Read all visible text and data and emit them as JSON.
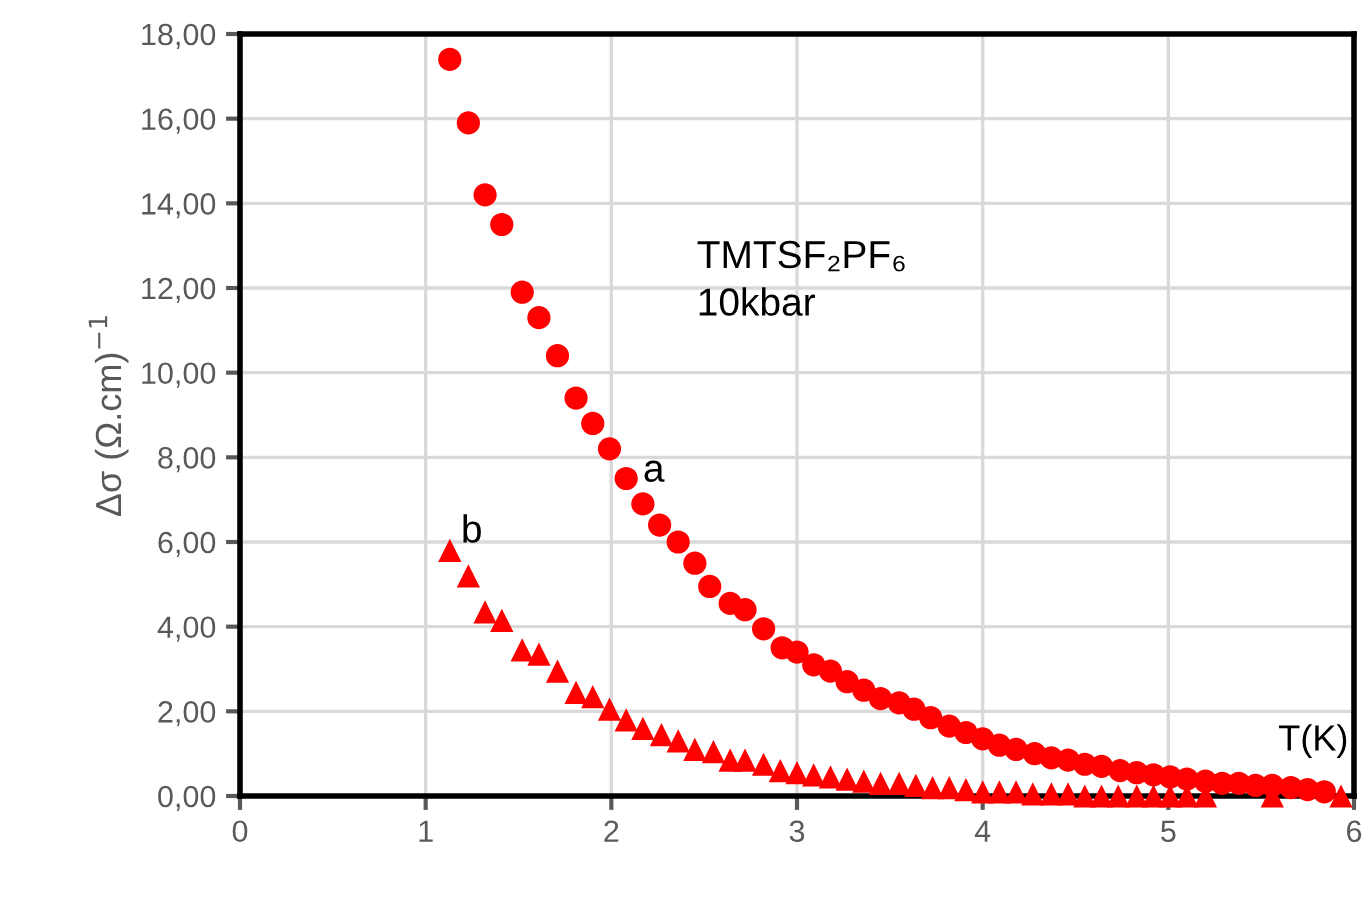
{
  "chart_data": {
    "type": "scatter",
    "xlabel": "T(K)",
    "ylabel": "Δσ (Ω.cm)$^{−1}$",
    "xlim": [
      0,
      6
    ],
    "xticks": [
      0,
      1,
      2,
      3,
      4,
      5,
      6
    ],
    "ylim": [
      0,
      18
    ],
    "yticks": [
      {
        "value": 0,
        "label": "0,00"
      },
      {
        "value": 2,
        "label": "2,00"
      },
      {
        "value": 4,
        "label": "4,00"
      },
      {
        "value": 6,
        "label": "6,00"
      },
      {
        "value": 8,
        "label": "8,00"
      },
      {
        "value": 10,
        "label": "10,00"
      },
      {
        "value": 12,
        "label": "12,00"
      },
      {
        "value": 14,
        "label": "14,00"
      },
      {
        "value": 16,
        "label": "16,00"
      },
      {
        "value": 18,
        "label": "18,00"
      }
    ],
    "grid": true,
    "legend": false,
    "series": [
      {
        "color": "#ff0000",
        "marker": "circle",
        "x": [
          1.13,
          1.23,
          1.32,
          1.41,
          1.52,
          1.61,
          1.71,
          1.81,
          1.9,
          1.99,
          2.08,
          2.17,
          2.26,
          2.36,
          2.45,
          2.53,
          2.64,
          2.72,
          2.82,
          2.92,
          3.0,
          3.09,
          3.18,
          3.27,
          3.36,
          3.45,
          3.55,
          3.63,
          3.72,
          3.82,
          3.91,
          4.0,
          4.09,
          4.18,
          4.28,
          4.37,
          4.46,
          4.55,
          4.64,
          4.74,
          4.83,
          4.92,
          5.01,
          5.1,
          5.2,
          5.29,
          5.38,
          5.47,
          5.56,
          5.66,
          5.75,
          5.84
        ],
        "values": [
          17.4,
          15.9,
          14.2,
          13.5,
          11.9,
          11.3,
          10.4,
          9.4,
          8.8,
          8.2,
          7.5,
          6.9,
          6.4,
          6.0,
          5.5,
          4.95,
          4.55,
          4.4,
          3.95,
          3.5,
          3.4,
          3.1,
          2.95,
          2.7,
          2.5,
          2.3,
          2.2,
          2.05,
          1.85,
          1.65,
          1.5,
          1.35,
          1.2,
          1.1,
          1.0,
          0.9,
          0.85,
          0.75,
          0.7,
          0.6,
          0.55,
          0.5,
          0.45,
          0.4,
          0.35,
          0.3,
          0.3,
          0.25,
          0.25,
          0.2,
          0.15,
          0.1
        ]
      },
      {
        "color": "#ff0000",
        "marker": "triangle",
        "x": [
          1.13,
          1.23,
          1.32,
          1.41,
          1.52,
          1.61,
          1.71,
          1.81,
          1.9,
          1.99,
          2.08,
          2.17,
          2.27,
          2.36,
          2.45,
          2.55,
          2.64,
          2.72,
          2.82,
          2.91,
          3.0,
          3.09,
          3.18,
          3.27,
          3.36,
          3.45,
          3.55,
          3.64,
          3.73,
          3.82,
          3.91,
          4.0,
          4.09,
          4.18,
          4.27,
          4.37,
          4.46,
          4.55,
          4.64,
          4.73,
          4.83,
          4.92,
          5.01,
          5.1,
          5.2,
          5.56,
          5.93
        ],
        "values": [
          5.8,
          5.2,
          4.35,
          4.15,
          3.45,
          3.35,
          2.95,
          2.45,
          2.35,
          2.05,
          1.8,
          1.6,
          1.45,
          1.3,
          1.1,
          1.05,
          0.85,
          0.85,
          0.75,
          0.6,
          0.55,
          0.5,
          0.45,
          0.4,
          0.35,
          0.3,
          0.3,
          0.25,
          0.2,
          0.2,
          0.15,
          0.1,
          0.1,
          0.1,
          0.05,
          0.05,
          0.05,
          0,
          0,
          0,
          0,
          0,
          0,
          0,
          0,
          0,
          0
        ]
      }
    ],
    "annotations": [
      {
        "text": "a",
        "x": 2.08,
        "y": 7.5
      },
      {
        "text": "b",
        "x": 1.13,
        "y": 5.8
      },
      "TMTSF₂PF₆\n10kbar"
    ]
  }
}
